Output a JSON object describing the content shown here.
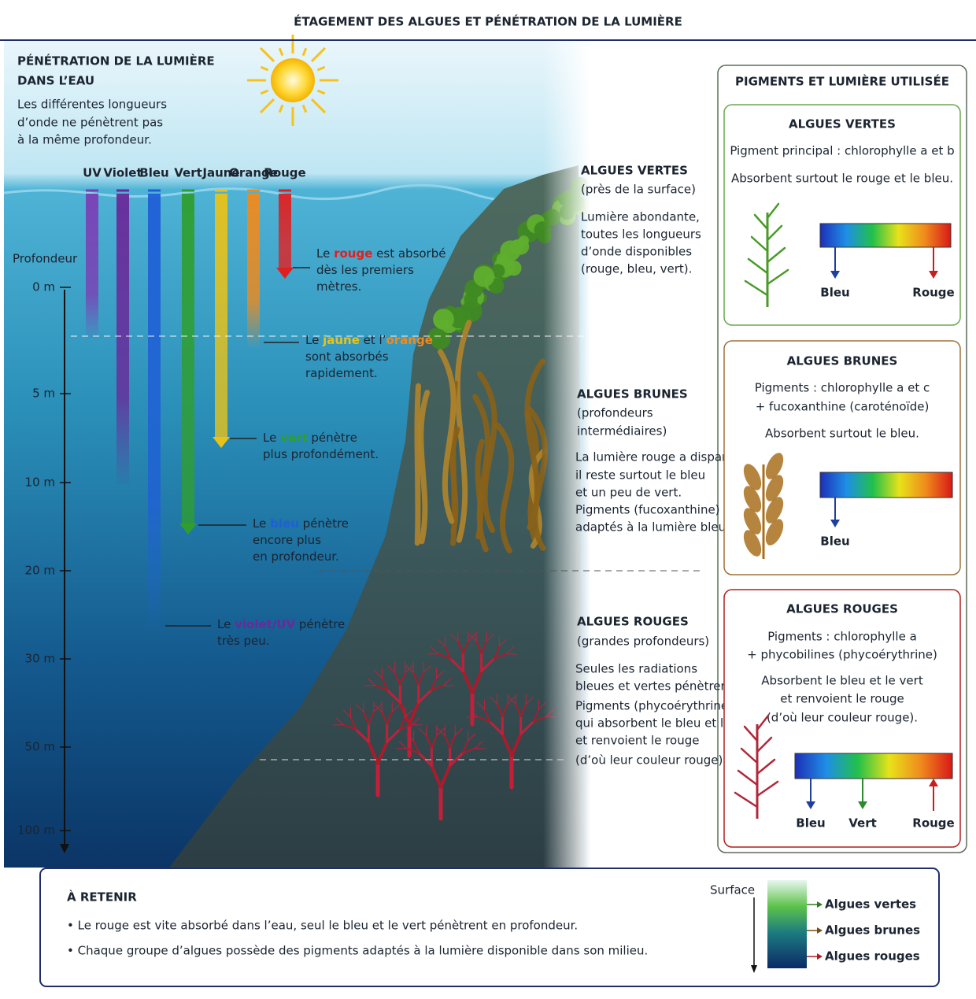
{
  "title": "ÉTAGEMENT DES ALGUES ET PÉNÉTRATION DE LA LUMIÈRE",
  "intro": {
    "heading": [
      "PÉNÉTRATION DE LA LUMIÈRE",
      "DANS L’EAU"
    ],
    "text": [
      "Les différentes longueurs",
      "d’onde ne pénètrent pas",
      "à la même profondeur."
    ]
  },
  "wavelengths": [
    {
      "label": "UV",
      "color": "#7b3fb5"
    },
    {
      "label": "Violet",
      "color": "#6a2a9a"
    },
    {
      "label": "Bleu",
      "color": "#1f5fd6"
    },
    {
      "label": "Vert",
      "color": "#2f9e2f"
    },
    {
      "label": "Jaune",
      "color": "#e8c21a"
    },
    {
      "label": "Orange",
      "color": "#f08a1c"
    },
    {
      "label": "Rouge",
      "color": "#e02020"
    }
  ],
  "depth": {
    "label": "Profondeur",
    "ticks": [
      "0 m",
      "5 m",
      "10 m",
      "20 m",
      "30 m",
      "50 m",
      "100 m"
    ]
  },
  "notes": [
    {
      "lines": [
        [
          {
            "text": "Le "
          },
          {
            "text": "rouge",
            "color": "#e02020"
          },
          {
            "text": " est absorbé"
          }
        ],
        [
          {
            "text": "dès les premiers"
          }
        ],
        [
          {
            "text": "mètres."
          }
        ]
      ]
    },
    {
      "lines": [
        [
          {
            "text": "Le "
          },
          {
            "text": "jaune",
            "color": "#e8c21a"
          },
          {
            "text": " et l’"
          },
          {
            "text": "orange",
            "color": "#f08a1c"
          }
        ],
        [
          {
            "text": "sont absorbés"
          }
        ],
        [
          {
            "text": "rapidement."
          }
        ]
      ]
    },
    {
      "lines": [
        [
          {
            "text": "Le "
          },
          {
            "text": "vert",
            "color": "#2f9e2f"
          },
          {
            "text": " pénètre"
          }
        ],
        [
          {
            "text": "plus profondément."
          }
        ]
      ]
    },
    {
      "lines": [
        [
          {
            "text": "Le "
          },
          {
            "text": "bleu",
            "color": "#1f5fd6"
          },
          {
            "text": " pénètre"
          }
        ],
        [
          {
            "text": "encore plus"
          }
        ],
        [
          {
            "text": "en profondeur."
          }
        ]
      ]
    },
    {
      "lines": [
        [
          {
            "text": "Le "
          },
          {
            "text": "violet/UV",
            "color": "#6a2a9a"
          },
          {
            "text": " pénètre"
          }
        ],
        [
          {
            "text": "très peu."
          }
        ]
      ]
    }
  ],
  "zones": [
    {
      "title": "ALGUES VERTES",
      "subtitle": [
        "(près de la surface)"
      ],
      "color": "#2e7a1e",
      "description": [
        "Lumière abondante,",
        "toutes les longueurs",
        "d’onde disponibles",
        "(rouge, bleu, vert)."
      ]
    },
    {
      "title": "ALGUES BRUNES",
      "subtitle": [
        "(profondeurs",
        "intermédiaires)"
      ],
      "color": "#7a4a10",
      "description": [
        "La lumière rouge a disparu,",
        "il reste surtout le bleu",
        "et un peu de vert.",
        "Pigments (fucoxanthine)",
        "adaptés à la lumière bleue."
      ]
    },
    {
      "title": "ALGUES ROUGES",
      "subtitle": [
        "(grandes profondeurs)"
      ],
      "color": "#b01c1c",
      "description": [
        "Seules les radiations",
        "bleues et vertes pénètrent.",
        "Pigments (phycoérythrine)",
        "qui absorbent le bleu et le vert",
        "et renvoient le rouge",
        "(d’où leur couleur rouge)."
      ]
    }
  ],
  "pigments": {
    "heading": "PIGMENTS ET LUMIÈRE UTILISÉE",
    "cards": [
      {
        "title": "ALGUES VERTES",
        "color": "#2e7a1e",
        "border": "#6aa84f",
        "lines": [
          "Pigment principal : chlorophylle a et b",
          "Absorbent surtout le rouge et le bleu."
        ],
        "arrows": [
          {
            "label": "Bleu",
            "color": "#1f3f9e",
            "direction": "down"
          },
          {
            "label": "Rouge",
            "color": "#c81e1e",
            "direction": "down"
          }
        ]
      },
      {
        "title": "ALGUES BRUNES",
        "color": "#7a4a10",
        "border": "#a0703a",
        "lines": [
          "Pigments : chlorophylle a et c",
          "+ fucoxanthine (caroténoïde)",
          "Absorbent surtout le bleu."
        ],
        "arrows": [
          {
            "label": "Bleu",
            "color": "#1f3f9e",
            "direction": "down"
          }
        ]
      },
      {
        "title": "ALGUES ROUGES",
        "color": "#b01c1c",
        "border": "#b02020",
        "lines": [
          "Pigments : chlorophylle a",
          "+ phycobilines (phycoérythrine)",
          "Absorbent le bleu et le vert",
          "et renvoient le rouge",
          "(d’où leur couleur rouge)."
        ],
        "arrows": [
          {
            "label": "Bleu",
            "color": "#1f3f9e",
            "direction": "down"
          },
          {
            "label": "Vert",
            "color": "#2e8a2e",
            "direction": "down"
          },
          {
            "label": "Rouge",
            "color": "#c81e1e",
            "direction": "up"
          }
        ]
      }
    ]
  },
  "summary": {
    "heading": "À RETENIR",
    "bullets": [
      "• Le rouge est vite absorbé dans l’eau, seul le bleu et le vert pénètrent en profondeur.",
      "• Chaque groupe d’algues possède des pigments adaptés à la lumière disponible dans son milieu."
    ],
    "legend": {
      "top": "Surface",
      "items": [
        {
          "label": "Algues vertes",
          "color": "#2e7a1e"
        },
        {
          "label": "Algues brunes",
          "color": "#7a4a10"
        },
        {
          "label": "Algues rouges",
          "color": "#b01c1c"
        }
      ]
    }
  }
}
